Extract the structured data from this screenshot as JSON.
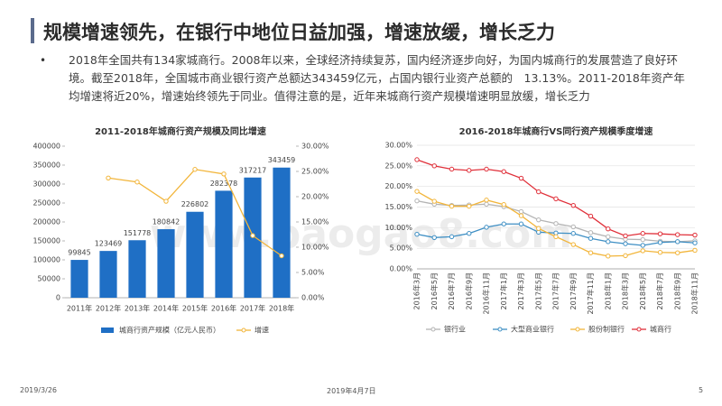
{
  "title": "规模增速领先，在银行中地位日益加强，增速放缓，增长乏力",
  "bullet": "2018年全国共有134家城商行。2008年以来，全球经济持续复苏，国内经济逐步向好，为国内城商行的发展营造了良好环境。截至2018年，全国城市商业银行资产总额达343459亿元，占国内银行业资产总额的　13.13%。2011-2018年资产年均增速将近20%，增速始终领先于同业。值得注意的是，近年来城商行资产规模增速明显放缓，增长乏力",
  "watermark": "www.baogao8.com",
  "footer": {
    "left": "2019/3/26",
    "center": "2019年4月7日",
    "page": "5"
  },
  "chart_data": [
    {
      "type": "bar",
      "title": "2011-2018年城商行资产规模及同比增速",
      "categories": [
        "2011年",
        "2012年",
        "2013年",
        "2014年",
        "2015年",
        "2016年",
        "2017年",
        "2018年"
      ],
      "series": [
        {
          "name": "城商行资产规模（亿元人民币）",
          "color": "#1f6fc5",
          "values": [
            99845,
            123469,
            151778,
            180842,
            226802,
            282378,
            317217,
            343459
          ]
        },
        {
          "name": "增速",
          "color": "#f2b53a",
          "axis": "y2",
          "values": [
            null,
            23.7,
            22.9,
            19.1,
            25.4,
            24.5,
            12.3,
            8.3
          ]
        }
      ],
      "ylim": [
        0,
        400000
      ],
      "yticks": [
        0,
        50000,
        100000,
        150000,
        200000,
        250000,
        300000,
        350000,
        400000
      ],
      "y2lim": [
        0,
        30
      ],
      "y2ticks": [
        {
          "value": 0,
          "label": "0.00%"
        },
        {
          "value": 5,
          "label": "5.00%"
        },
        {
          "value": 10,
          "label": "10.00%"
        },
        {
          "value": 15,
          "label": "15.00%"
        },
        {
          "value": 20,
          "label": "20.00%"
        },
        {
          "value": 25,
          "label": "25.00%"
        },
        {
          "value": 30,
          "label": "30.00%"
        }
      ],
      "grid": false
    },
    {
      "type": "line",
      "title": "2016-2018年城商行VS同行资产规模季度增速",
      "categories": [
        "2016年3月",
        "2016年5月",
        "2016年7月",
        "2016年9月",
        "2016年11月",
        "2017年1月",
        "2017年3月",
        "2017年5月",
        "2017年7月",
        "2017年9月",
        "2017年11月",
        "2018年1月",
        "2018年3月",
        "2018年5月",
        "2018年7月",
        "2018年9月",
        "2018年11月"
      ],
      "series": [
        {
          "name": "银行业",
          "color": "#b4b4b4",
          "values": [
            16.5,
            15.7,
            15.4,
            15.5,
            15.7,
            15.1,
            13.9,
            11.9,
            11.0,
            10.2,
            8.8,
            7.8,
            7.2,
            7.1,
            6.7,
            6.6,
            6.8
          ]
        },
        {
          "name": "大型商业银行",
          "color": "#3e8fc4",
          "values": [
            8.4,
            7.6,
            7.8,
            8.6,
            10.1,
            10.9,
            10.9,
            8.9,
            8.7,
            8.6,
            7.4,
            6.6,
            6.1,
            5.7,
            6.4,
            6.6,
            6.3
          ]
        },
        {
          "name": "股份制银行",
          "color": "#f2b53a",
          "values": [
            18.8,
            16.4,
            15.2,
            15.2,
            16.7,
            15.6,
            12.9,
            9.8,
            7.8,
            5.9,
            3.9,
            3.1,
            3.2,
            4.4,
            4.0,
            3.9,
            4.5
          ]
        },
        {
          "name": "城商行",
          "color": "#e0303a",
          "values": [
            26.5,
            25.0,
            24.2,
            23.9,
            24.2,
            23.6,
            22.0,
            18.7,
            17.0,
            15.4,
            12.8,
            9.7,
            8.0,
            8.6,
            8.5,
            8.3,
            8.2
          ]
        }
      ],
      "ylim": [
        0,
        30
      ],
      "yticks": [
        {
          "value": 0,
          "label": "0.00%"
        },
        {
          "value": 5,
          "label": "5.00%"
        },
        {
          "value": 10,
          "label": "10.00%"
        },
        {
          "value": 15,
          "label": "15.00%"
        },
        {
          "value": 20,
          "label": "20.00%"
        },
        {
          "value": 25,
          "label": "25.00%"
        },
        {
          "value": 30,
          "label": "30.00%"
        }
      ],
      "grid": true
    }
  ]
}
